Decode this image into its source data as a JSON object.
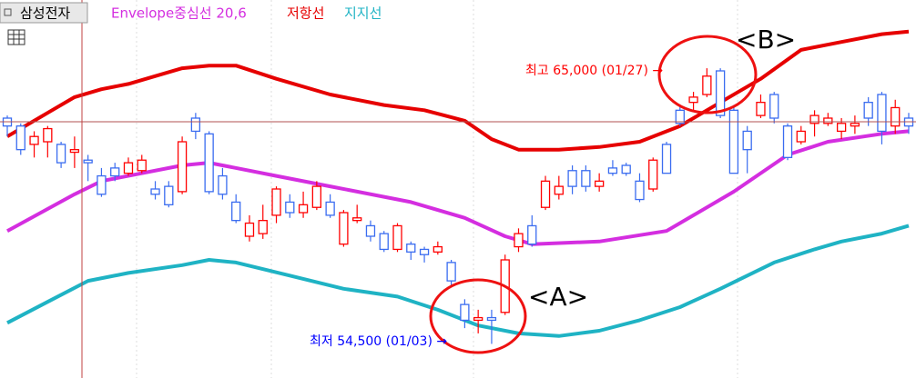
{
  "chart_data": {
    "type": "candlestick",
    "ylim": [
      53200,
      67600
    ],
    "series": [
      {
        "name": "삼성전자",
        "type": "candlestick",
        "up_color": "#ff0000",
        "down_color": "#3a6cf0",
        "open": [
          63100,
          62800,
          62100,
          62200,
          62100,
          61800,
          61500,
          60900,
          61200,
          61000,
          61100,
          60400,
          60500,
          60300,
          63100,
          62500,
          60900,
          59900,
          58600,
          58700,
          59400,
          59900,
          59500,
          59700,
          59900,
          58300,
          59200,
          59000,
          58700,
          58100,
          58300,
          58100,
          58000,
          57600,
          56000,
          55400,
          55500,
          55700,
          58200,
          59000,
          59700,
          60200,
          61100,
          61100,
          60500,
          61200,
          61300,
          60700,
          60400,
          62100,
          63400,
          63700,
          64000,
          64900,
          63400,
          62600,
          63200,
          64000,
          62800,
          62200,
          62900,
          62900,
          62600,
          62800,
          63700,
          64000,
          62800,
          63100
        ],
        "high": [
          63200,
          62900,
          62600,
          62800,
          62200,
          62400,
          61700,
          61200,
          61400,
          61600,
          61700,
          60700,
          60700,
          62400,
          63300,
          62600,
          61200,
          60200,
          59400,
          59800,
          60500,
          60200,
          60300,
          60700,
          60200,
          59600,
          59800,
          59200,
          58800,
          59100,
          58400,
          58200,
          58400,
          57700,
          56200,
          55800,
          55800,
          57900,
          58900,
          59400,
          60900,
          60900,
          61300,
          61300,
          61000,
          61500,
          61400,
          61000,
          61600,
          62200,
          63600,
          64100,
          65000,
          65000,
          63600,
          62800,
          64000,
          64100,
          62900,
          62800,
          63400,
          63300,
          63100,
          63200,
          63900,
          64100,
          63800,
          63300
        ],
        "low": [
          62400,
          61700,
          61600,
          61600,
          61200,
          61200,
          60700,
          60100,
          60700,
          60900,
          61000,
          60000,
          59700,
          60200,
          62300,
          60200,
          60000,
          59100,
          58400,
          58500,
          59100,
          59300,
          59300,
          59600,
          59300,
          58200,
          59100,
          58400,
          58000,
          58000,
          57700,
          57600,
          57900,
          56700,
          55100,
          54900,
          54500,
          55600,
          58000,
          58200,
          59600,
          60000,
          60200,
          60300,
          60300,
          60900,
          60900,
          59900,
          60300,
          61000,
          62800,
          63400,
          63900,
          63100,
          61000,
          61000,
          63100,
          62900,
          61500,
          62100,
          62400,
          62800,
          62300,
          62500,
          62800,
          62100,
          62500,
          62500
        ],
        "close": [
          62800,
          61900,
          62400,
          62700,
          61400,
          61900,
          61400,
          60200,
          60900,
          61400,
          61500,
          60200,
          59800,
          62200,
          62600,
          60300,
          60200,
          59200,
          59100,
          59200,
          60400,
          59500,
          59800,
          60500,
          59400,
          59500,
          59300,
          58600,
          58100,
          59000,
          58000,
          57900,
          58200,
          56900,
          55400,
          55500,
          55400,
          57700,
          58700,
          58300,
          60700,
          60500,
          60500,
          60500,
          60700,
          61000,
          61000,
          60000,
          61500,
          61000,
          62900,
          63900,
          64700,
          63200,
          61000,
          61900,
          63700,
          63100,
          61600,
          62600,
          63200,
          63100,
          62900,
          62900,
          63100,
          62600,
          63500,
          62800
        ]
      },
      {
        "name": "Envelope중심선 20,6",
        "type": "line",
        "color": "#d42ee0",
        "x": [
          0,
          5,
          7,
          13,
          15,
          20,
          24,
          30,
          34,
          37,
          39,
          44,
          49,
          51,
          54,
          58,
          61,
          65,
          67
        ],
        "values": [
          58800,
          60200,
          60700,
          61300,
          61400,
          60900,
          60500,
          59900,
          59300,
          58600,
          58300,
          58400,
          58800,
          59400,
          60300,
          61700,
          62200,
          62500,
          62600
        ]
      },
      {
        "name": "저항선",
        "type": "line",
        "color": "#e60000",
        "x": [
          0,
          3,
          5,
          7,
          9,
          13,
          15,
          17,
          20,
          24,
          28,
          31,
          34,
          36,
          38,
          41,
          44,
          47,
          50,
          53,
          56,
          59,
          62,
          65,
          67
        ],
        "values": [
          62400,
          63300,
          63900,
          64200,
          64400,
          65000,
          65100,
          65100,
          64600,
          64000,
          63600,
          63400,
          63000,
          62300,
          61900,
          61900,
          62000,
          62200,
          62800,
          63700,
          64600,
          65700,
          66000,
          66300,
          66400
        ]
      },
      {
        "name": "지지선",
        "type": "line",
        "color": "#1fb3c4",
        "x": [
          0,
          3,
          6,
          9,
          13,
          15,
          17,
          21,
          25,
          29,
          32,
          35,
          38,
          41,
          44,
          47,
          50,
          53,
          57,
          60,
          62,
          65,
          67
        ],
        "values": [
          55300,
          56100,
          56900,
          57200,
          57500,
          57700,
          57600,
          57100,
          56600,
          56300,
          55800,
          55200,
          54900,
          54800,
          55000,
          55400,
          55900,
          56600,
          57600,
          58100,
          58400,
          58700,
          59000
        ]
      }
    ],
    "annotations": [
      {
        "text": "최고 65,000 (01/27) →",
        "color": "#ff0000"
      },
      {
        "text": "최저 54,500 (01/03) →",
        "color": "#0000ff"
      },
      {
        "text": "<A>",
        "color": "#000000"
      },
      {
        "text": "<B>",
        "color": "#000000"
      }
    ]
  }
}
